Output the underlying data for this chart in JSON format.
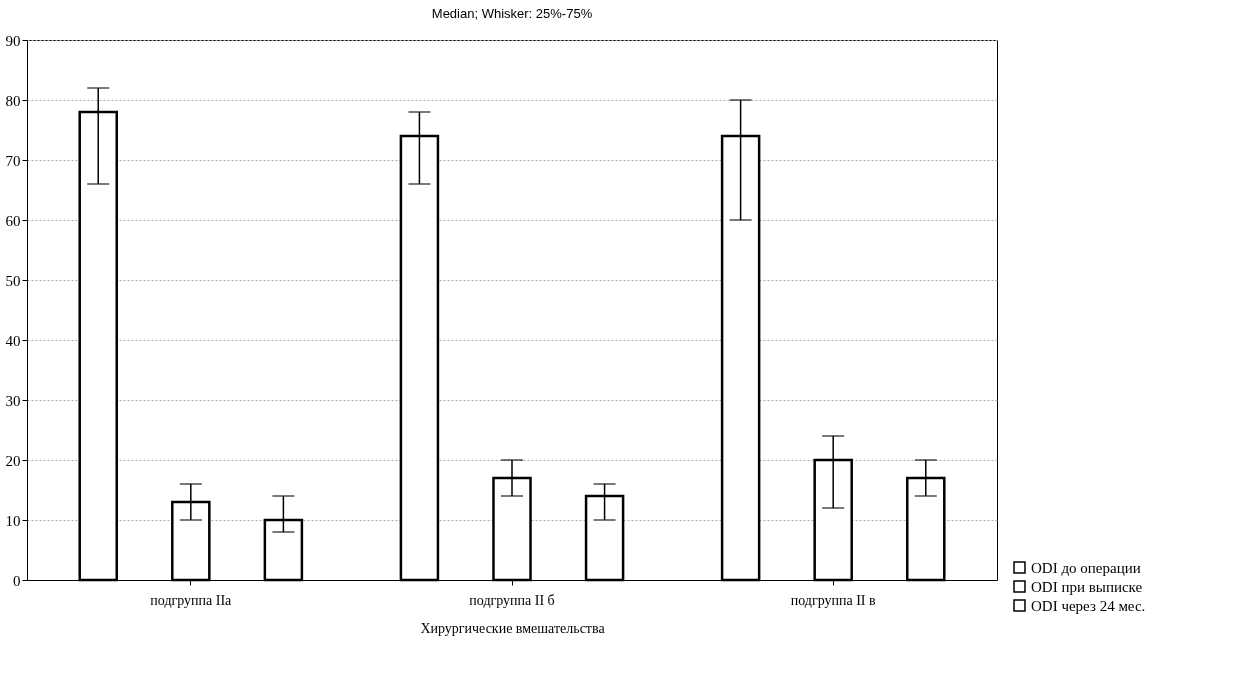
{
  "chart_data": {
    "type": "bar",
    "title": "Median; Whisker: 25%-75%",
    "xlabel": "Хирургические вмешательства",
    "categories": [
      "подгруппа IIa",
      "подгруппа II б",
      "подгруппа II в"
    ],
    "series": [
      {
        "name": "ODI до операции",
        "color": "#ffffff",
        "values": [
          78,
          74,
          74
        ],
        "errors": [
          [
            66,
            82
          ],
          [
            66,
            78
          ],
          [
            60,
            80
          ]
        ]
      },
      {
        "name": "ODI при выписке",
        "color": "#ffffff",
        "values": [
          13,
          17,
          20
        ],
        "errors": [
          [
            10,
            16
          ],
          [
            14,
            20
          ],
          [
            12,
            24
          ]
        ]
      },
      {
        "name": "ODI через 24 мес.",
        "color": "#ffffff",
        "values": [
          10,
          14,
          17
        ],
        "errors": [
          [
            8,
            14
          ],
          [
            10,
            16
          ],
          [
            14,
            20
          ]
        ]
      }
    ],
    "ylim": [
      0,
      90
    ],
    "yticks": [
      0,
      10,
      20,
      30,
      40,
      50,
      60,
      70,
      80,
      90
    ],
    "grid": "y",
    "legend": "bottom right"
  }
}
